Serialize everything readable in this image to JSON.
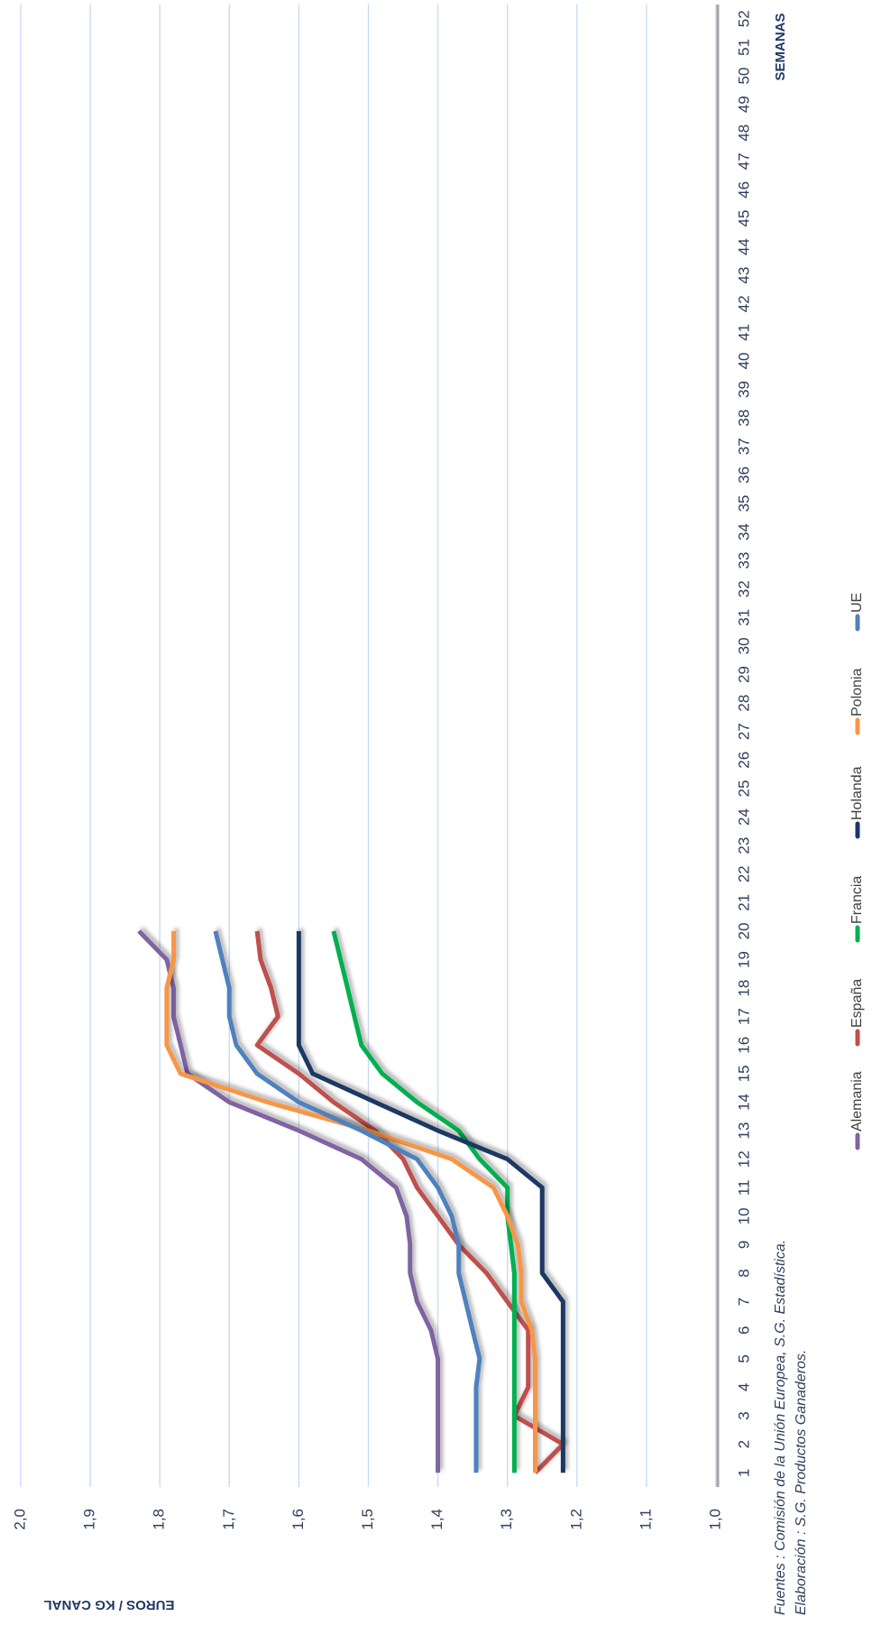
{
  "chart_data": {
    "type": "line",
    "y_label": "EUROS / KG CANAL",
    "x_label": "SEMANAS",
    "notes": [
      "Fuentes : Comisión de la Unión Europea, S.G. Estadística.",
      "Elaboración : S.G. Productos Ganaderos."
    ],
    "categories": [
      "1",
      "2",
      "3",
      "4",
      "5",
      "6",
      "7",
      "8",
      "9",
      "10",
      "11",
      "12",
      "13",
      "14",
      "15",
      "16",
      "17",
      "18",
      "19",
      "20",
      "21",
      "22",
      "23",
      "24",
      "25",
      "26",
      "27",
      "28",
      "29",
      "30",
      "31",
      "32",
      "33",
      "34",
      "35",
      "36",
      "37",
      "38",
      "39",
      "40",
      "41",
      "42",
      "43",
      "44",
      "45",
      "46",
      "47",
      "48",
      "49",
      "50",
      "51",
      "52"
    ],
    "ylim": [
      1.0,
      2.0
    ],
    "yticks": [
      {
        "value": 1.0,
        "label": "1,0"
      },
      {
        "value": 1.1,
        "label": "1,1"
      },
      {
        "value": 1.2,
        "label": "1,2"
      },
      {
        "value": 1.3,
        "label": "1,3"
      },
      {
        "value": 1.4,
        "label": "1,4"
      },
      {
        "value": 1.5,
        "label": "1,5"
      },
      {
        "value": 1.6,
        "label": "1,6"
      },
      {
        "value": 1.7,
        "label": "1,7"
      },
      {
        "value": 1.8,
        "label": "1,8"
      },
      {
        "value": 1.9,
        "label": "1,9"
      },
      {
        "value": 2.0,
        "label": "2,0"
      }
    ],
    "grid": true,
    "series": [
      {
        "name": "Alemania",
        "color": "#8064a2",
        "values": [
          1.4,
          1.4,
          1.4,
          1.4,
          1.4,
          1.41,
          1.43,
          1.44,
          1.44,
          1.445,
          1.46,
          1.51,
          1.6,
          1.7,
          1.76,
          1.77,
          1.78,
          1.78,
          1.79,
          1.83,
          null,
          null,
          null,
          null,
          null,
          null,
          null,
          null,
          null,
          null,
          null,
          null,
          null,
          null,
          null,
          null,
          null,
          null,
          null,
          null,
          null,
          null,
          null,
          null,
          null,
          null,
          null,
          null,
          null,
          null,
          null,
          null
        ]
      },
      {
        "name": "España",
        "color": "#c0504d",
        "values": [
          1.26,
          1.22,
          1.29,
          1.27,
          1.27,
          1.27,
          1.3,
          1.33,
          1.37,
          1.4,
          1.43,
          1.45,
          1.49,
          1.55,
          1.6,
          1.66,
          1.63,
          1.64,
          1.655,
          1.66,
          null,
          null,
          null,
          null,
          null,
          null,
          null,
          null,
          null,
          null,
          null,
          null,
          null,
          null,
          null,
          null,
          null,
          null,
          null,
          null,
          null,
          null,
          null,
          null,
          null,
          null,
          null,
          null,
          null,
          null,
          null,
          null
        ]
      },
      {
        "name": "Francia",
        "color": "#00b050",
        "values": [
          1.29,
          1.29,
          1.29,
          1.29,
          1.29,
          1.29,
          1.29,
          1.29,
          1.295,
          1.3,
          1.3,
          1.34,
          1.37,
          1.43,
          1.48,
          1.51,
          1.52,
          1.53,
          1.54,
          1.55,
          null,
          null,
          null,
          null,
          null,
          null,
          null,
          null,
          null,
          null,
          null,
          null,
          null,
          null,
          null,
          null,
          null,
          null,
          null,
          null,
          null,
          null,
          null,
          null,
          null,
          null,
          null,
          null,
          null,
          null,
          null,
          null
        ]
      },
      {
        "name": "Holanda",
        "color": "#1f3864",
        "values": [
          1.22,
          1.22,
          1.22,
          1.22,
          1.22,
          1.22,
          1.22,
          1.25,
          1.25,
          1.25,
          1.25,
          1.3,
          1.4,
          1.49,
          1.58,
          1.6,
          1.6,
          1.6,
          1.6,
          1.6,
          null,
          null,
          null,
          null,
          null,
          null,
          null,
          null,
          null,
          null,
          null,
          null,
          null,
          null,
          null,
          null,
          null,
          null,
          null,
          null,
          null,
          null,
          null,
          null,
          null,
          null,
          null,
          null,
          null,
          null,
          null,
          null
        ]
      },
      {
        "name": "Polonia",
        "color": "#f79646",
        "values": [
          1.26,
          1.26,
          1.26,
          1.26,
          1.26,
          1.265,
          1.28,
          1.28,
          1.285,
          1.3,
          1.32,
          1.38,
          1.5,
          1.645,
          1.77,
          1.79,
          1.79,
          1.79,
          1.78,
          1.78,
          null,
          null,
          null,
          null,
          null,
          null,
          null,
          null,
          null,
          null,
          null,
          null,
          null,
          null,
          null,
          null,
          null,
          null,
          null,
          null,
          null,
          null,
          null,
          null,
          null,
          null,
          null,
          null,
          null,
          null,
          null,
          null
        ]
      },
      {
        "name": "UE",
        "color": "#4f81bd",
        "values": [
          1.345,
          1.345,
          1.345,
          1.345,
          1.34,
          1.35,
          1.36,
          1.37,
          1.37,
          1.38,
          1.4,
          1.43,
          1.51,
          1.6,
          1.66,
          1.69,
          1.7,
          1.7,
          1.71,
          1.72,
          null,
          null,
          null,
          null,
          null,
          null,
          null,
          null,
          null,
          null,
          null,
          null,
          null,
          null,
          null,
          null,
          null,
          null,
          null,
          null,
          null,
          null,
          null,
          null,
          null,
          null,
          null,
          null,
          null,
          null,
          null,
          null
        ]
      }
    ]
  }
}
